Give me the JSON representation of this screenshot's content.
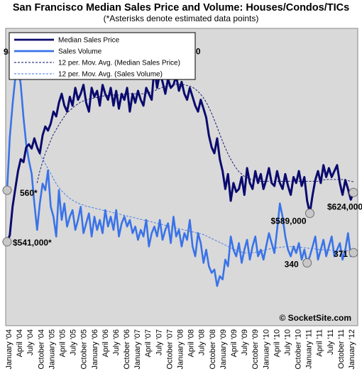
{
  "chart_data": {
    "type": "line",
    "title": "San Francisco Median Sales Price and Volume: Houses/Condos/TICs",
    "subtitle": "(*Asterisks denote estimated data points)",
    "credit": "© SocketSite.com",
    "x_tick_labels": [
      "January '04",
      "April '04",
      "July '04",
      "October '04",
      "January '05",
      "April '05",
      "July '05",
      "October '05",
      "January '06",
      "April '06",
      "July '06",
      "October '06",
      "January '07",
      "April '07",
      "July '07",
      "October '07",
      "January '08",
      "April '08",
      "July '08",
      "October '08",
      "January '09",
      "April '09",
      "July '09",
      "October '09",
      "January '10",
      "April '10",
      "July '10",
      "October '10",
      "January '11",
      "April '11",
      "July '11",
      "October '11",
      "January '12"
    ],
    "legend": [
      {
        "label": "Median Sales Price",
        "color": "#0a0a6e",
        "style": "solid-thick"
      },
      {
        "label": "Sales Volume",
        "color": "#3a73e8",
        "style": "solid-thick"
      },
      {
        "label": "12 per. Mov. Avg. (Median Sales Price)",
        "color": "#0a0a6e",
        "style": "dashed"
      },
      {
        "label": "12 per. Mov. Avg. (Sales Volume)",
        "color": "#3a73e8",
        "style": "dashed"
      }
    ],
    "series": [
      {
        "name": "Median Sales Price",
        "color": "#0a0a6e",
        "axis": "price",
        "values": [
          541000,
          552000,
          600000,
          630000,
          660000,
          680000,
          675000,
          700000,
          705000,
          698000,
          715000,
          700000,
          690000,
          720000,
          735000,
          728000,
          740000,
          760000,
          752000,
          775000,
          790000,
          770000,
          760000,
          785000,
          770000,
          800000,
          780000,
          790000,
          805000,
          775000,
          760000,
          800000,
          785000,
          795000,
          770000,
          805000,
          790000,
          780000,
          800000,
          770000,
          795000,
          765000,
          790000,
          780000,
          800000,
          760000,
          790000,
          775000,
          795000,
          780000,
          770000,
          800000,
          790000,
          780000,
          835000,
          800000,
          825000,
          810000,
          790000,
          815000,
          800000,
          805000,
          820000,
          795000,
          810000,
          790000,
          780000,
          800000,
          785000,
          770000,
          760000,
          780000,
          765000,
          750000,
          720000,
          700000,
          690000,
          715000,
          680000,
          660000,
          630000,
          655000,
          610000,
          640000,
          625000,
          630000,
          650000,
          620000,
          665000,
          640000,
          630000,
          660000,
          640000,
          655000,
          630000,
          645000,
          665000,
          640000,
          635000,
          660000,
          640000,
          630000,
          655000,
          635000,
          620000,
          650000,
          640000,
          660000,
          635000,
          650000,
          610000,
          589000,
          620000,
          645000,
          660000,
          640000,
          670000,
          650000,
          665000,
          650000,
          660000,
          670000,
          640000,
          620000,
          645000,
          630000,
          612000,
          624000
        ]
      },
      {
        "name": "Sales Volume",
        "color": "#3a73e8",
        "axis": "volume",
        "values": [
          560,
          720,
          820,
          900,
          940,
          880,
          780,
          700,
          650,
          610,
          520,
          440,
          520,
          580,
          560,
          620,
          510,
          480,
          420,
          560,
          470,
          520,
          450,
          480,
          500,
          440,
          470,
          510,
          430,
          460,
          490,
          420,
          480,
          440,
          470,
          430,
          500,
          450,
          480,
          440,
          500,
          420,
          460,
          480,
          450,
          470,
          430,
          450,
          410,
          440,
          420,
          470,
          390,
          430,
          450,
          420,
          470,
          410,
          440,
          460,
          400,
          480,
          420,
          440,
          390,
          430,
          410,
          470,
          390,
          360,
          430,
          400,
          340,
          380,
          330,
          310,
          320,
          270,
          300,
          290,
          350,
          330,
          420,
          380,
          360,
          400,
          340,
          380,
          410,
          350,
          390,
          420,
          360,
          380,
          350,
          390,
          430,
          400,
          370,
          440,
          520,
          480,
          420,
          380,
          360,
          390,
          370,
          400,
          350,
          380,
          340,
          360,
          390,
          420,
          350,
          380,
          410,
          360,
          390,
          420,
          360,
          380,
          400,
          350,
          380,
          430,
          360,
          371
        ]
      },
      {
        "name": "12 per. Mov. Avg. (Median Sales Price)",
        "color": "#0a0a6e",
        "axis": "price",
        "dashed": true,
        "values": [
          null,
          null,
          null,
          null,
          null,
          null,
          null,
          null,
          null,
          null,
          null,
          640000,
          660000,
          675000,
          690000,
          700000,
          712000,
          722000,
          730000,
          738000,
          745000,
          752000,
          758000,
          762000,
          766000,
          770000,
          773000,
          776000,
          778000,
          780000,
          781000,
          782000,
          783000,
          784000,
          785000,
          786000,
          787000,
          787000,
          788000,
          788000,
          788000,
          788000,
          789000,
          789000,
          790000,
          790000,
          790000,
          790000,
          790000,
          790000,
          790000,
          791000,
          792000,
          793000,
          795000,
          797000,
          799000,
          801000,
          802000,
          803000,
          804000,
          805000,
          806000,
          806000,
          806000,
          805000,
          804000,
          803000,
          801000,
          798000,
          794000,
          789000,
          783000,
          776000,
          767000,
          757000,
          746000,
          734000,
          722000,
          710000,
          699000,
          689000,
          680000,
          672000,
          665000,
          659000,
          655000,
          651000,
          649000,
          647000,
          645000,
          644000,
          643000,
          643000,
          643000,
          643000,
          643000,
          643000,
          643000,
          643000,
          643000,
          643000,
          643000,
          643000,
          643000,
          643000,
          643000,
          643000,
          643000,
          643000,
          643000,
          643000,
          643000,
          643000,
          643000,
          644000,
          645000,
          646000,
          646000,
          646000,
          646000,
          646000,
          646000,
          646000,
          645000,
          644000,
          643000,
          642000
        ]
      },
      {
        "name": "12 per. Mov. Avg. (Sales Volume)",
        "color": "#3a73e8",
        "axis": "volume",
        "dashed": true,
        "values": [
          null,
          null,
          null,
          null,
          null,
          null,
          null,
          null,
          null,
          null,
          null,
          690,
          670,
          655,
          640,
          625,
          610,
          595,
          580,
          568,
          558,
          550,
          542,
          535,
          530,
          525,
          521,
          518,
          515,
          512,
          510,
          508,
          506,
          504,
          502,
          500,
          498,
          496,
          494,
          492,
          490,
          488,
          486,
          484,
          482,
          480,
          478,
          476,
          474,
          472,
          470,
          468,
          466,
          464,
          462,
          460,
          458,
          456,
          454,
          452,
          450,
          448,
          446,
          444,
          442,
          440,
          438,
          436,
          434,
          432,
          430,
          428,
          426,
          422,
          418,
          414,
          410,
          406,
          402,
          398,
          394,
          390,
          386,
          382,
          378,
          375,
          373,
          371,
          370,
          370,
          371,
          372,
          374,
          376,
          378,
          380,
          382,
          384,
          385,
          386,
          387,
          388,
          389,
          389,
          389,
          389,
          389,
          388,
          387,
          386,
          385,
          384,
          383,
          382,
          381,
          380,
          380,
          379,
          379,
          378,
          378,
          378,
          378,
          377,
          377,
          377,
          377,
          377
        ]
      }
    ],
    "annotations": [
      {
        "text": "940*",
        "series": "Sales Volume",
        "index": 4
      },
      {
        "text": "$835,000",
        "series": "Median Sales Price",
        "index": 54
      },
      {
        "text": "$541,000*",
        "series": "Median Sales Price",
        "index": 0
      },
      {
        "text": "560*",
        "series": "Sales Volume",
        "index": 0
      },
      {
        "text": "$589,000",
        "series": "Median Sales Price",
        "index": 111
      },
      {
        "text": "$624,000",
        "series": "Median Sales Price",
        "index": 127
      },
      {
        "text": "340",
        "series": "Sales Volume",
        "index": 110
      },
      {
        "text": "371",
        "series": "Sales Volume",
        "index": 127
      }
    ],
    "price_range": [
      400000,
      900000
    ],
    "volume_range": [
      150,
      1050
    ],
    "grid": false,
    "legend_position": "top-left"
  }
}
